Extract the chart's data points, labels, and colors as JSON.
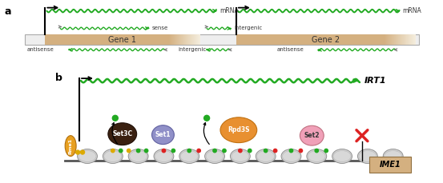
{
  "fig_width": 5.53,
  "fig_height": 2.29,
  "dpi": 100,
  "bg_color": "#ffffff",
  "label_a": "a",
  "label_b": "b",
  "gene1_label": "Gene 1",
  "gene2_label": "Gene 2",
  "irt1_label": "IRT1",
  "ime1_label": "IME1",
  "mrna_label": "mRNA",
  "sense_label": "sense",
  "antisense_label": "antisense",
  "intergenic_label": "intergenic",
  "proteins": [
    "Rme1",
    "Set3C",
    "Set1",
    "Rpd3S",
    "Set2"
  ],
  "protein_colors": [
    "#e8a020",
    "#3a2010",
    "#9090c8",
    "#e89030",
    "#f0a0b8"
  ],
  "green_color": "#22aa22",
  "dark_green": "#116611",
  "gray_arrow": "#777777",
  "gene_tan": "#d4b080",
  "gene_light": "#f0e8d8",
  "chromatin_fill": "#d8d8d8",
  "chromatin_edge": "#909090",
  "red_color": "#dd2222",
  "gold_color": "#ddaa00",
  "dot_green": "#22aa22",
  "dot_red": "#dd2222"
}
